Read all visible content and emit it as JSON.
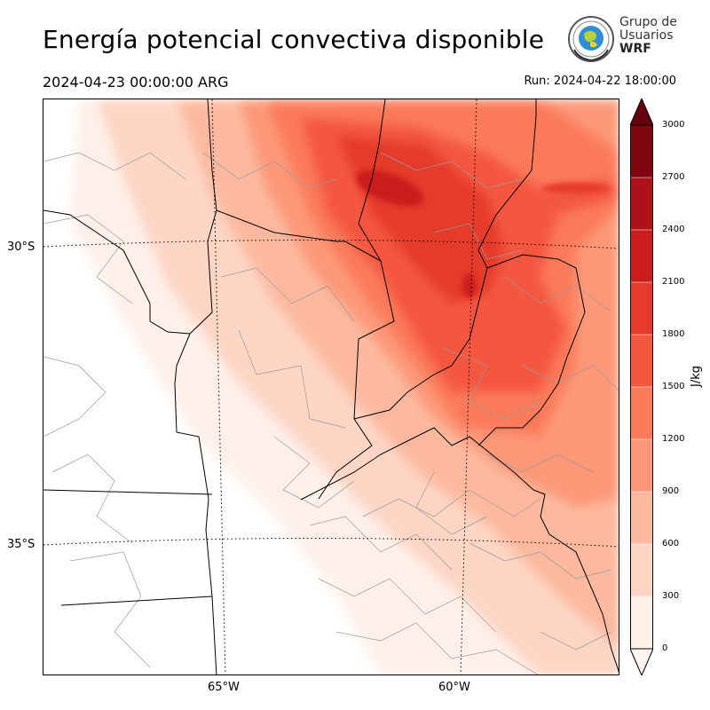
{
  "title": "Energía potencial convectiva disponible",
  "valid_time": "2024-04-23 00:00:00 ARG",
  "run_time": "Run: 2024-04-22 18:00:00",
  "logo": {
    "line1": "Grupo de",
    "line2": "Usuarios",
    "line3": "WRF",
    "icon": "globe-seal-icon"
  },
  "map": {
    "variable": "CAPE",
    "projection": "lambert-conformal",
    "lat_labels": [
      "30°S",
      "35°S"
    ],
    "lon_labels": [
      "65°W",
      "60°W"
    ],
    "gridlines": "dotted",
    "colors": {
      "boundary": "#000000",
      "subdivision": "#9a9a9a"
    }
  },
  "colorbar": {
    "unit": "J/kg",
    "ticks": [
      "0",
      "300",
      "600",
      "900",
      "1200",
      "1500",
      "1800",
      "2100",
      "2400",
      "2700",
      "3000"
    ],
    "levels": [
      0,
      300,
      600,
      900,
      1200,
      1500,
      1800,
      2100,
      2400,
      2700,
      3000
    ],
    "colors": [
      "#fff0ea",
      "#fdd5c4",
      "#fcb99f",
      "#fc9878",
      "#fb7a5a",
      "#f4573f",
      "#e53a2c",
      "#cb1d1e",
      "#ad1218",
      "#7f0610"
    ],
    "extend": "both"
  }
}
